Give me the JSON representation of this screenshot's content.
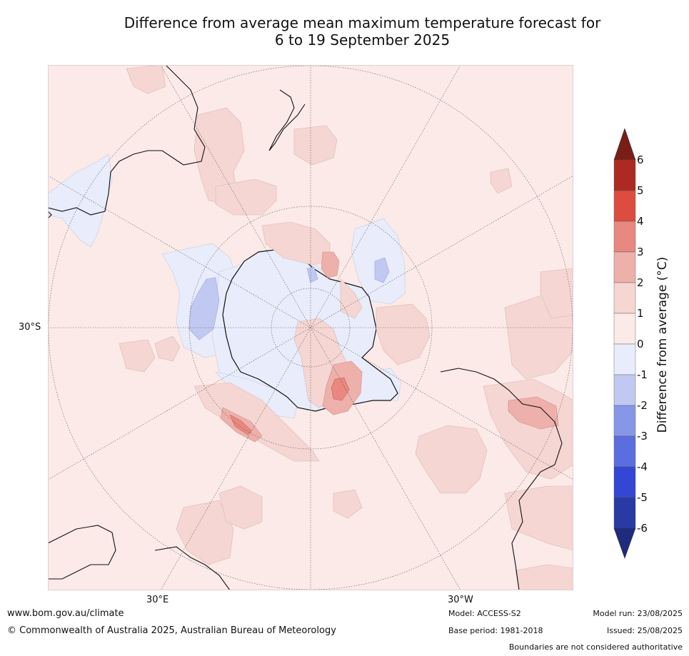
{
  "title_line1": "Difference from average mean maximum temperature forecast for",
  "title_line2": "6 to 19 September 2025",
  "map": {
    "projection": "south-polar-stereographic",
    "background_color": "#fbeae8",
    "lat_label": "30°S",
    "lon_labels": [
      "30°E",
      "30°W"
    ]
  },
  "colorbar": {
    "title": "Difference from average (°C)",
    "ticks": [
      "6",
      "5",
      "4",
      "3",
      "2",
      "1",
      "0",
      "-1",
      "-2",
      "-3",
      "-4",
      "-5",
      "-6"
    ],
    "colors": {
      "over": "#7b1d17",
      "p5_6": "#ad2a22",
      "p4_5": "#dc4d40",
      "p3_4": "#e88880",
      "p2_3": "#eeb0aa",
      "p1_2": "#f5d6d3",
      "p0_1": "#fbeae8",
      "m1_0": "#e8ecfb",
      "m2_1": "#c1c9f2",
      "m3_2": "#8797e8",
      "m4_3": "#5a6ee0",
      "m5_4": "#3347d4",
      "m6_5": "#283aa4",
      "under": "#1f2b7e"
    }
  },
  "footer": {
    "website": "www.bom.gov.au/climate",
    "copyright": "© Commonwealth of Australia 2025, Australian Bureau of Meteorology",
    "model": "Model: ACCESS-S2",
    "base_period": "Base period: 1981-2018",
    "model_run": "Model run: 23/08/2025",
    "issued": "Issued: 25/08/2025",
    "disclaimer": "Boundaries are not considered authoritative"
  }
}
